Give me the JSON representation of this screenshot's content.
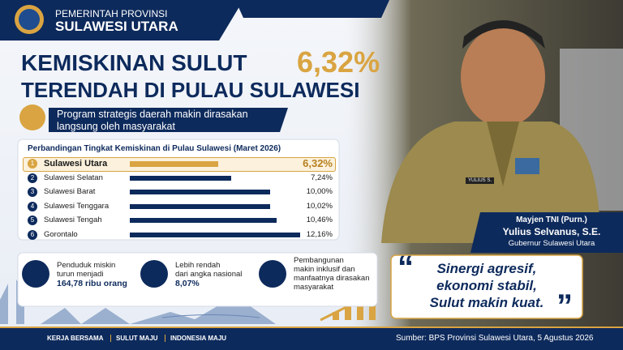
{
  "header": {
    "line1": "PEMERINTAH PROVINSI",
    "line2": "SULAWESI UTARA"
  },
  "headline": {
    "title": "KEMISKINAN SULUT",
    "highlight": "6,32%",
    "subtitle": "TERENDAH DI PULAU SULAWESI"
  },
  "ribbon": [
    "Program strategis daerah makin dirasakan",
    "langsung oleh masyarakat"
  ],
  "chart_data": {
    "type": "bar",
    "title": "Perbandingan Tingkat Kemiskinan di Pulau Sulawesi (Maret 2026)",
    "ranks": [
      1,
      2,
      3,
      4,
      5,
      6
    ],
    "categories": [
      "Sulawesi Utara",
      "Sulawesi Selatan",
      "Sulawesi Barat",
      "Sulawesi Tenggara",
      "Sulawesi Tengah",
      "Gorontalo"
    ],
    "values": [
      6.32,
      7.24,
      10.0,
      10.02,
      10.46,
      12.16
    ],
    "value_labels": [
      "6,32%",
      "7,24%",
      "10,00%",
      "10,02%",
      "10,46%",
      "12,16%"
    ],
    "color": "#0d2a5c",
    "highlight_color": "#d9a441"
  },
  "stats": [
    {
      "lines": [
        "Penduduk miskin",
        "turun menjadi"
      ],
      "strong": "164,78 ribu orang"
    },
    {
      "lines": [
        "Lebih rendah",
        "dari angka nasional"
      ],
      "strong": "8,07%"
    },
    {
      "lines": [
        "Pembangunan",
        "makin inklusif dan",
        "manfaatnya dirasakan",
        "masyarakat"
      ]
    }
  ],
  "name_tag": "YULIUS S.",
  "person": {
    "rank": "Mayjen TNI (Purn.)",
    "name": "Yulius Selvanus, S.E.",
    "position": "Gubernur Sulawesi Utara"
  },
  "quote": {
    "open": "“",
    "close": "”",
    "lines": [
      "Sinergi agresif,",
      "ekonomi stabil,",
      "Sulut makin kuat."
    ]
  },
  "footer": {
    "slogans": [
      "KERJA BERSAMA",
      "SULUT MAJU",
      "INDONESIA MAJU"
    ],
    "source": "Sumber: BPS Provinsi Sulawesi Utara, 5 Agustus 2026"
  }
}
